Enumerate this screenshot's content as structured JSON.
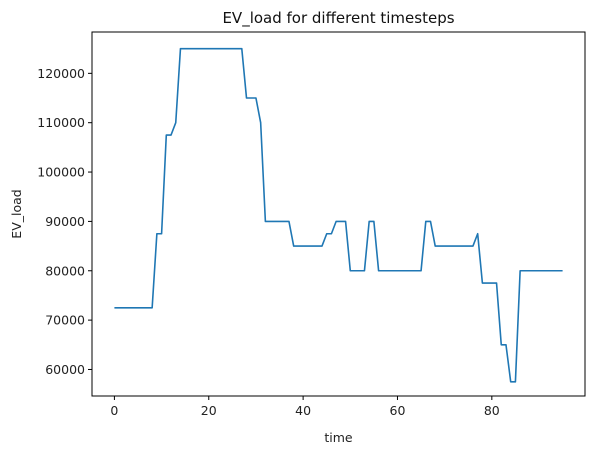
{
  "chart_data": {
    "type": "line",
    "title": "EV_load for different timesteps",
    "xlabel": "time",
    "ylabel": "EV_load",
    "xlim": [
      -4.75,
      99.75
    ],
    "ylim": [
      54625,
      128375
    ],
    "xticks": [
      0,
      20,
      40,
      60,
      80
    ],
    "yticks": [
      60000,
      70000,
      80000,
      90000,
      100000,
      110000,
      120000
    ],
    "grid": false,
    "line_color": "#1f77b4",
    "series": [
      {
        "x": [
          0,
          1,
          2,
          3,
          4,
          5,
          6,
          7,
          8,
          9,
          10,
          11,
          12,
          13,
          14,
          15,
          16,
          17,
          18,
          19,
          20,
          21,
          22,
          23,
          24,
          25,
          26,
          27,
          28,
          29,
          30,
          31,
          32,
          33,
          34,
          35,
          36,
          37,
          38,
          39,
          40,
          41,
          42,
          43,
          44,
          45,
          46,
          47,
          48,
          49,
          50,
          51,
          52,
          53,
          54,
          55,
          56,
          57,
          58,
          59,
          60,
          61,
          62,
          63,
          64,
          65,
          66,
          67,
          68,
          69,
          70,
          71,
          72,
          73,
          74,
          75,
          76,
          77,
          78,
          79,
          80,
          81,
          82,
          83,
          84,
          85,
          86,
          87,
          88,
          89,
          90,
          91,
          92,
          93,
          94,
          95
        ],
        "values": [
          72500,
          72500,
          72500,
          72500,
          72500,
          72500,
          72500,
          72500,
          72500,
          87500,
          87500,
          107500,
          107500,
          110000,
          125000,
          125000,
          125000,
          125000,
          125000,
          125000,
          125000,
          125000,
          125000,
          125000,
          125000,
          125000,
          125000,
          125000,
          115000,
          115000,
          115000,
          110000,
          90000,
          90000,
          90000,
          90000,
          90000,
          90000,
          85000,
          85000,
          85000,
          85000,
          85000,
          85000,
          85000,
          87500,
          87500,
          90000,
          90000,
          90000,
          80000,
          80000,
          80000,
          80000,
          90000,
          90000,
          80000,
          80000,
          80000,
          80000,
          80000,
          80000,
          80000,
          80000,
          80000,
          80000,
          90000,
          90000,
          85000,
          85000,
          85000,
          85000,
          85000,
          85000,
          85000,
          85000,
          85000,
          87500,
          77500,
          77500,
          77500,
          77500,
          65000,
          65000,
          57500,
          57500,
          80000,
          80000,
          80000,
          80000,
          80000,
          80000,
          80000,
          80000,
          80000,
          80000
        ]
      }
    ]
  }
}
